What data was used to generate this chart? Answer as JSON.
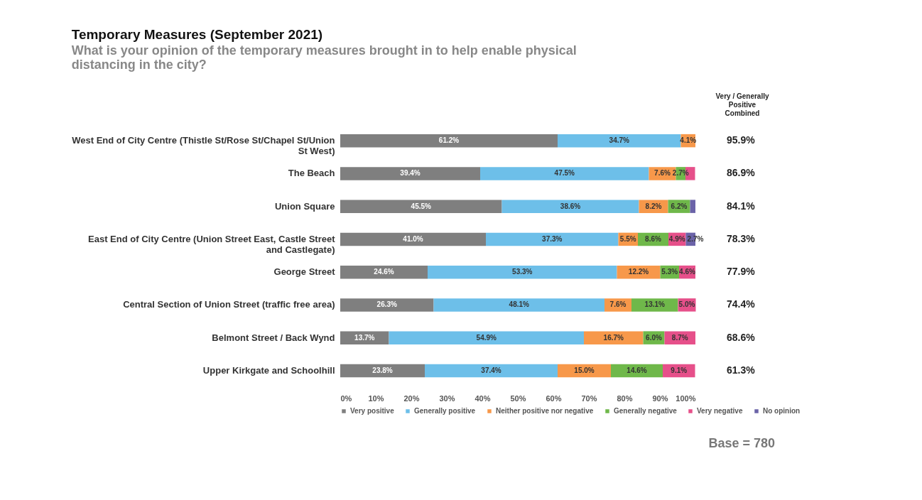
{
  "chart_data": {
    "type": "bar",
    "orientation": "horizontal",
    "stacked": true,
    "title": "Temporary Measures (September 2021)",
    "subtitle": "What is your opinion of the temporary measures brought in to help enable physical distancing in the city?",
    "categories": [
      "West End of City Centre (Thistle St/Rose St/Chapel St/Union St West)",
      "The Beach",
      "Union Square",
      "East End of City Centre (Union Street East, Castle Street and Castlegate)",
      "George Street",
      "Central Section of Union Street (traffic free area)",
      "Belmont Street / Back Wynd",
      "Upper Kirkgate and Schoolhill"
    ],
    "series": [
      {
        "name": "Very positive",
        "color": "#7f7f7f",
        "values": [
          61.2,
          39.4,
          45.5,
          41.0,
          24.6,
          26.3,
          13.7,
          23.8
        ],
        "value_labels": [
          "61.2%",
          "39.4%",
          "45.5%",
          "41.0%",
          "24.6%",
          "26.3%",
          "13.7%",
          "23.8%"
        ]
      },
      {
        "name": "Generally positive",
        "color": "#6dbfe9",
        "values": [
          34.7,
          47.5,
          38.6,
          37.3,
          53.3,
          48.1,
          54.9,
          37.4
        ],
        "value_labels": [
          "34.7%",
          "47.5%",
          "38.6%",
          "37.3%",
          "53.3%",
          "48.1%",
          "54.9%",
          "37.4%"
        ]
      },
      {
        "name": "Neither positive nor negative",
        "color": "#f7984a",
        "values": [
          4.1,
          7.6,
          8.2,
          5.5,
          12.2,
          7.6,
          16.7,
          15.0
        ],
        "value_labels": [
          "4.1%",
          "7.6%",
          "8.2%",
          "5.5%",
          "12.2%",
          "7.6%",
          "16.7%",
          "15.0%"
        ]
      },
      {
        "name": "Generally negative",
        "color": "#6fb84a",
        "values": [
          null,
          2.7,
          6.2,
          8.6,
          5.3,
          13.1,
          6.0,
          14.6
        ],
        "value_labels": [
          null,
          "2.7%",
          "6.2%",
          "8.6%",
          "5.3%",
          "13.1%",
          "6.0%",
          "14.6%"
        ]
      },
      {
        "name": "Very negative",
        "color": "#e6508a",
        "values": [
          null,
          2.7,
          null,
          4.9,
          4.6,
          5.0,
          8.7,
          9.1
        ],
        "value_labels": [
          null,
          null,
          null,
          "4.9%",
          "4.6%",
          "5.0%",
          "8.7%",
          "9.1%"
        ]
      },
      {
        "name": "No opinion",
        "color": "#6b63a8",
        "values": [
          null,
          null,
          1.5,
          2.7,
          null,
          null,
          null,
          null
        ],
        "value_labels": [
          null,
          null,
          null,
          "2.7%",
          null,
          null,
          null,
          null
        ]
      }
    ],
    "xlim": [
      0,
      100
    ],
    "xticks": [
      {
        "value": 0,
        "label": "0%"
      },
      {
        "value": 10,
        "label": "10%"
      },
      {
        "value": 20,
        "label": "20%"
      },
      {
        "value": 30,
        "label": "30%"
      },
      {
        "value": 40,
        "label": "40%"
      },
      {
        "value": 50,
        "label": "50%"
      },
      {
        "value": 60,
        "label": "60%"
      },
      {
        "value": 70,
        "label": "70%"
      },
      {
        "value": 80,
        "label": "80%"
      },
      {
        "value": 90,
        "label": "90%"
      },
      {
        "value": 100,
        "label": "100%"
      }
    ],
    "grid": false,
    "legend": "bottom",
    "annotations": [
      "Very / Generally Positive Combined",
      "95.9%",
      "86.9%",
      "84.1%",
      "78.3%",
      "77.9%",
      "74.4%",
      "68.6%",
      "61.3%",
      "Base = 780"
    ]
  }
}
